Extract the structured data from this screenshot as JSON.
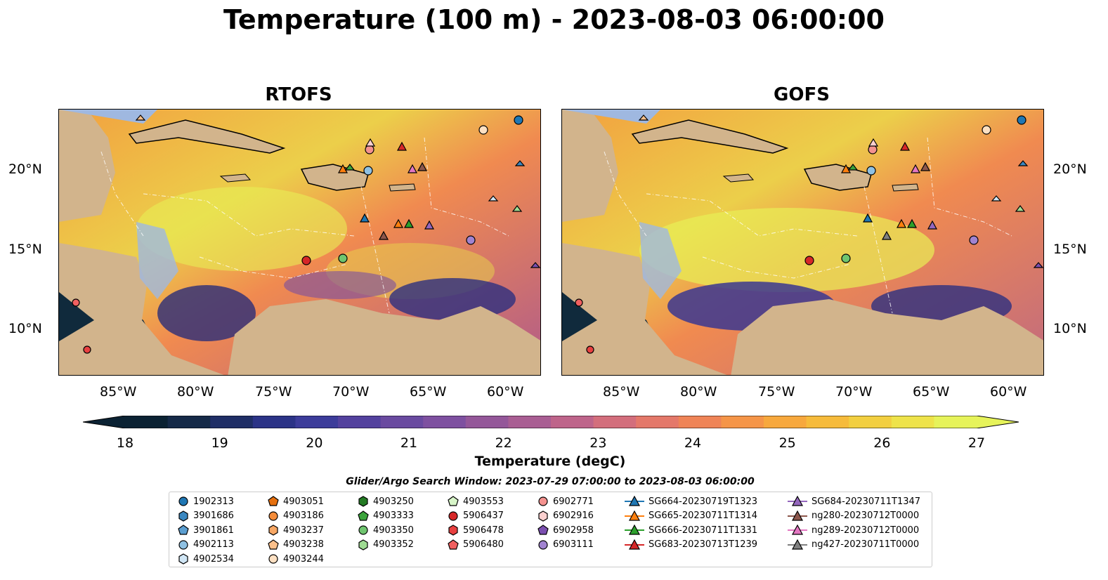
{
  "title": "Temperature (100 m) - 2023-08-03 06:00:00",
  "maps": [
    {
      "title": "RTOFS"
    },
    {
      "title": "GOFS"
    }
  ],
  "lat_ticks": [
    "20°N",
    "15°N",
    "10°N"
  ],
  "lon_ticks": [
    "85°W",
    "80°W",
    "75°W",
    "70°W",
    "65°W",
    "60°W"
  ],
  "colorbar": {
    "label": "Temperature (degC)",
    "ticks": [
      "18",
      "19",
      "20",
      "21",
      "22",
      "23",
      "24",
      "25",
      "26",
      "27"
    ],
    "colors": [
      "#0b2233",
      "#152a48",
      "#1f2e66",
      "#2b3387",
      "#3c3c9a",
      "#53419e",
      "#6a4aa0",
      "#7e50a0",
      "#945799",
      "#a95e93",
      "#be648a",
      "#d36e7c",
      "#e4786a",
      "#ef8457",
      "#f59548",
      "#f7a83d",
      "#f6bb3b",
      "#f2cf40",
      "#eee34a",
      "#e6f35a"
    ]
  },
  "search_window": "Glider/Argo Search Window: 2023-07-29 07:00:00 to 2023-08-03 06:00:00",
  "legend": [
    [
      {
        "label": "1902313",
        "shape": "circle",
        "color": "#1f77b4"
      },
      {
        "label": "3901686",
        "shape": "hexagon",
        "color": "#3a87c0"
      },
      {
        "label": "3901861",
        "shape": "pentagon",
        "color": "#5b9ed0"
      },
      {
        "label": "4902113",
        "shape": "circle",
        "color": "#8fc1e3"
      },
      {
        "label": "4902534",
        "shape": "hexagon",
        "color": "#d0e6f5"
      }
    ],
    [
      {
        "label": "4903051",
        "shape": "pentagon",
        "color": "#e6700e"
      },
      {
        "label": "4903186",
        "shape": "circle",
        "color": "#f48c3a"
      },
      {
        "label": "4903237",
        "shape": "hexagon",
        "color": "#f7a764"
      },
      {
        "label": "4903238",
        "shape": "pentagon",
        "color": "#fbc08b"
      },
      {
        "label": "4903244",
        "shape": "circle",
        "color": "#fde0c2"
      }
    ],
    [
      {
        "label": "4903250",
        "shape": "hexagon",
        "color": "#237a23"
      },
      {
        "label": "4903333",
        "shape": "pentagon",
        "color": "#3ba33b"
      },
      {
        "label": "4903350",
        "shape": "circle",
        "color": "#6fc56f"
      },
      {
        "label": "4903352",
        "shape": "hexagon",
        "color": "#9fdc93"
      }
    ],
    [
      {
        "label": "4903553",
        "shape": "pentagon",
        "color": "#d7f5c8"
      },
      {
        "label": "5906437",
        "shape": "circle",
        "color": "#d62728"
      },
      {
        "label": "5906478",
        "shape": "hexagon",
        "color": "#e84040"
      },
      {
        "label": "5906480",
        "shape": "pentagon",
        "color": "#f06060"
      }
    ],
    [
      {
        "label": "6902771",
        "shape": "circle",
        "color": "#f4928f"
      },
      {
        "label": "6902916",
        "shape": "hexagon",
        "color": "#fbd0cf"
      },
      {
        "label": "6902958",
        "shape": "pentagon",
        "color": "#7b4fb0"
      },
      {
        "label": "6903111",
        "shape": "circle",
        "color": "#a183d0"
      }
    ],
    [
      {
        "label": "SG664-20230719T1323",
        "shape": "triangle",
        "color": "#1f77b4"
      },
      {
        "label": "SG665-20230711T1314",
        "shape": "triangle",
        "color": "#ff7f0e"
      },
      {
        "label": "SG666-20230711T1331",
        "shape": "triangle",
        "color": "#2ca02c"
      },
      {
        "label": "SG683-20230713T1239",
        "shape": "triangle",
        "color": "#d62728"
      }
    ],
    [
      {
        "label": "SG684-20230711T1347",
        "shape": "triangle",
        "color": "#9467bd"
      },
      {
        "label": "ng280-20230712T0000",
        "shape": "triangle",
        "color": "#8c564b"
      },
      {
        "label": "ng289-20230712T0000",
        "shape": "triangle",
        "color": "#e377c2"
      },
      {
        "label": "ng427-20230711T0000",
        "shape": "triangle",
        "color": "#7f7f7f"
      }
    ]
  ]
}
